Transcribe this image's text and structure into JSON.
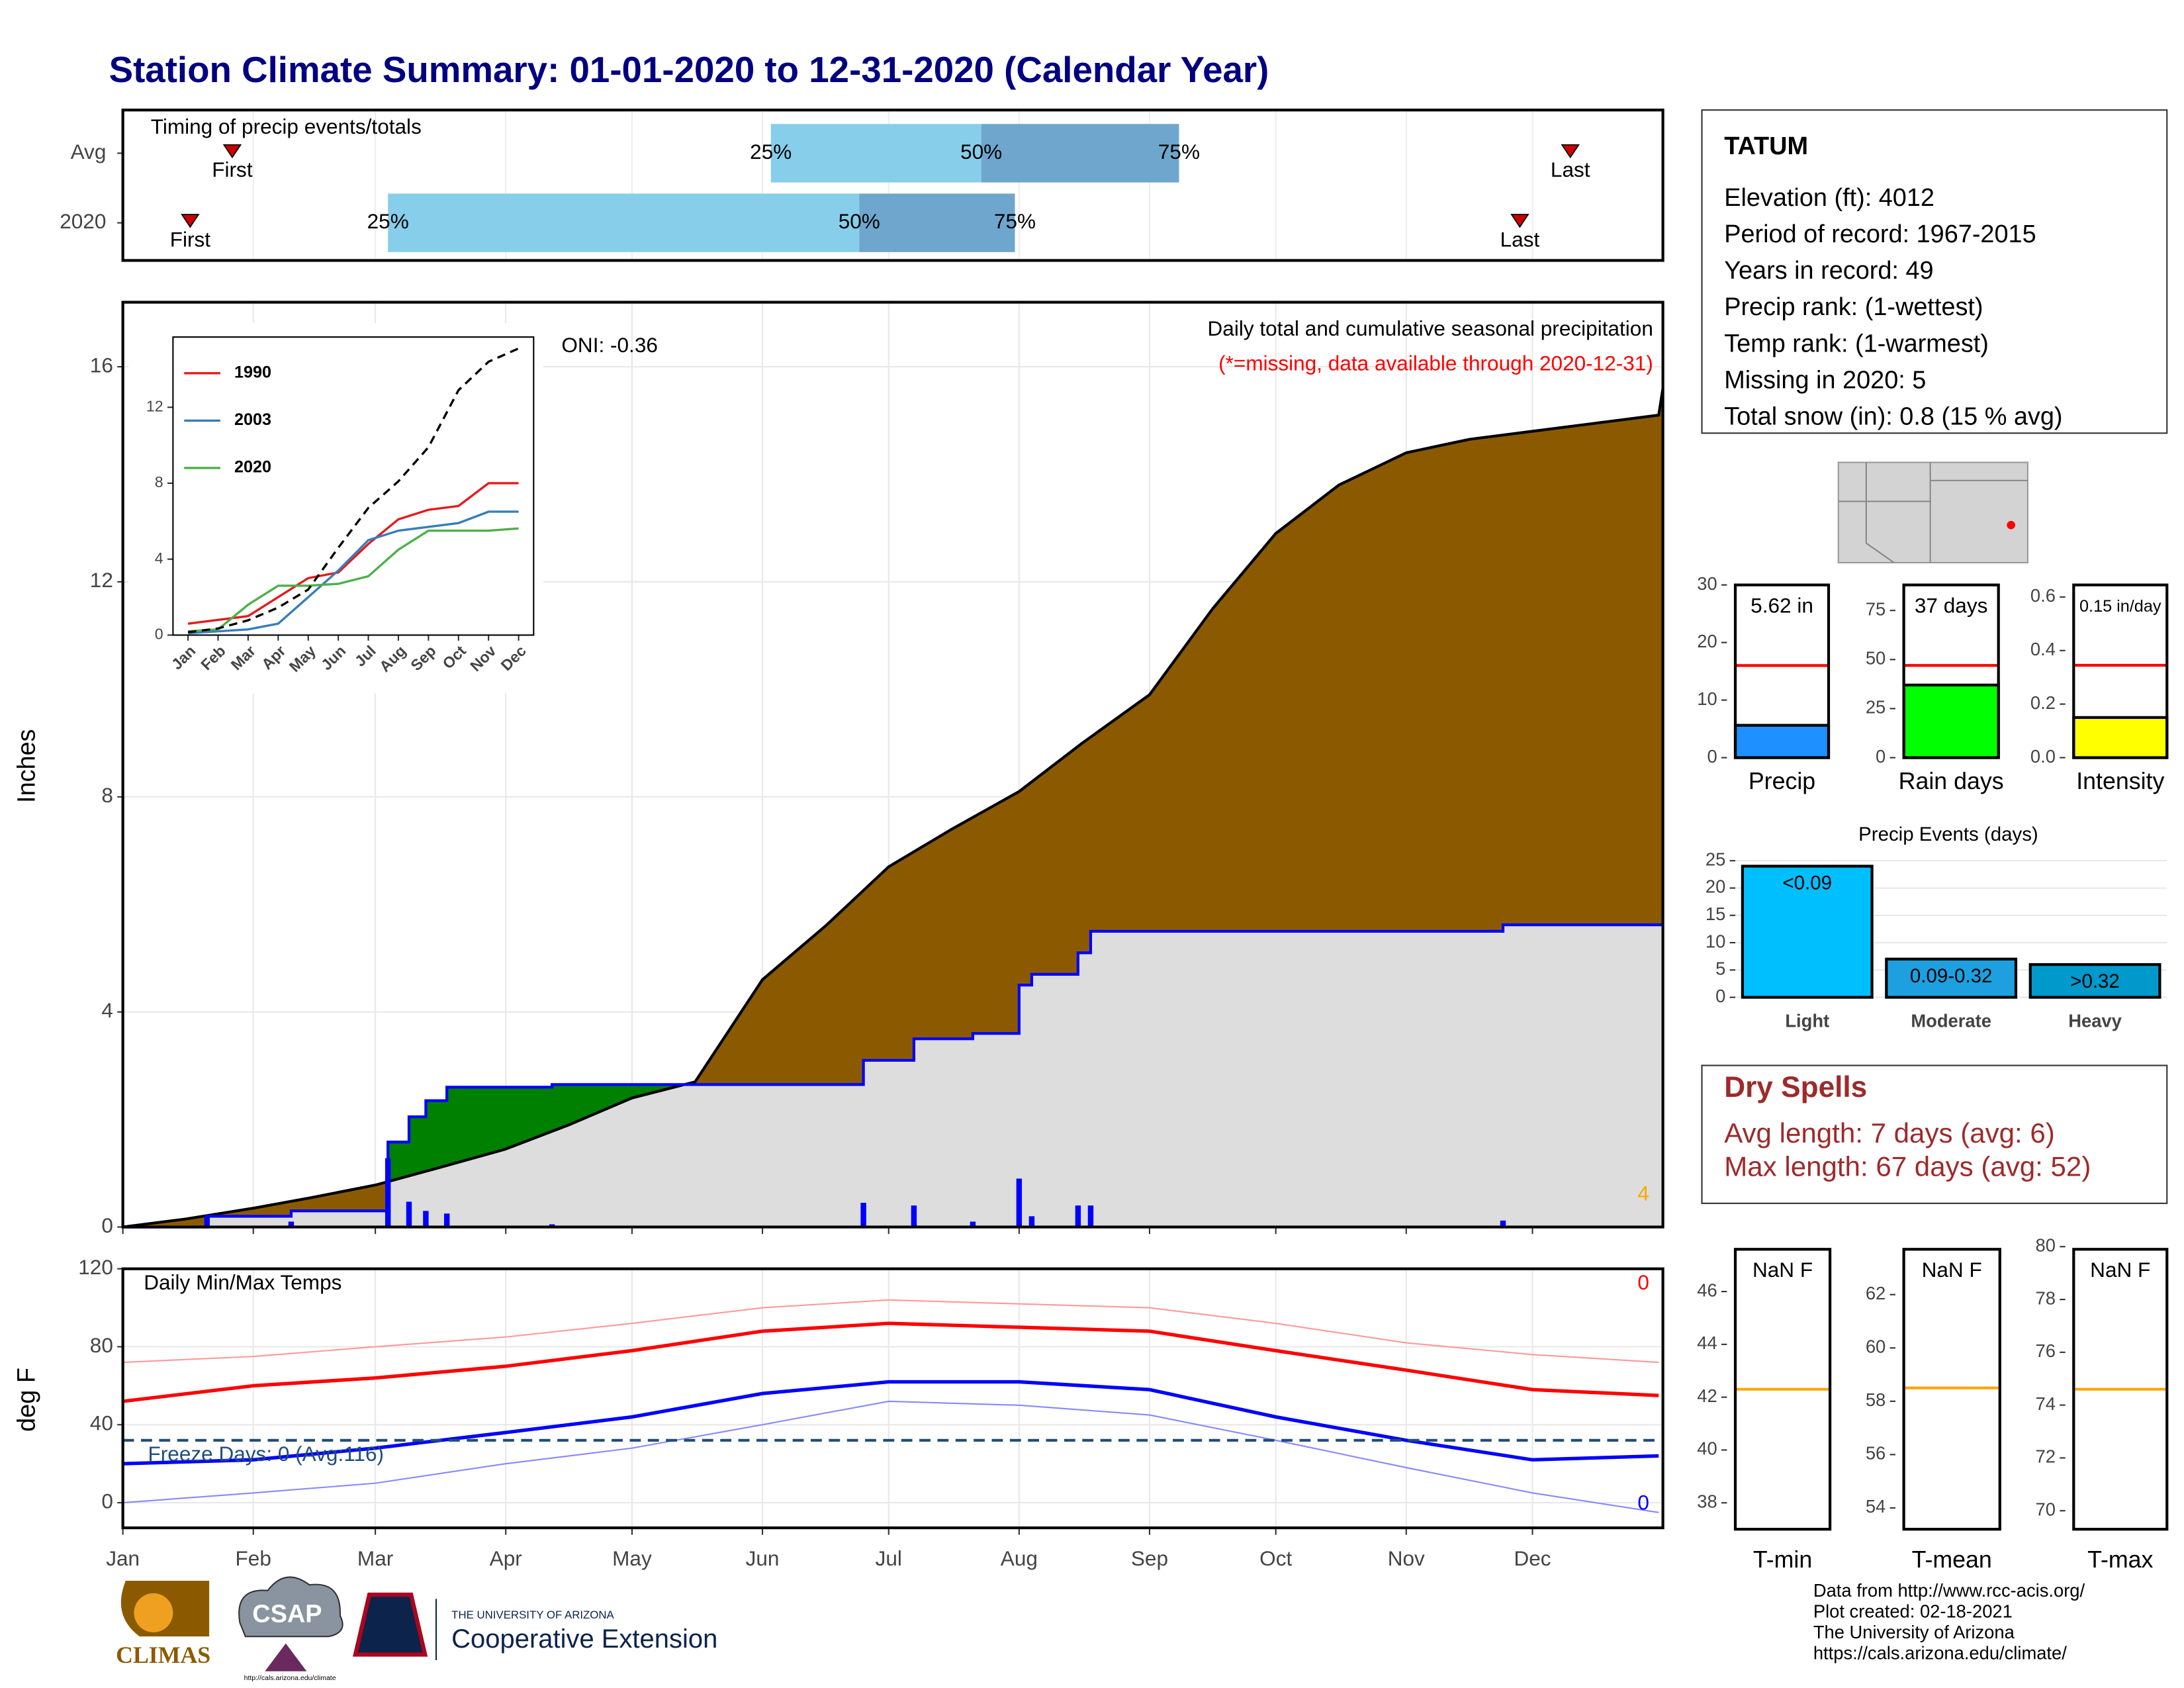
{
  "title": "Station Climate Summary: 01-01-2020 to 12-31-2020 (Calendar Year)",
  "station": {
    "name": "TATUM",
    "lines": [
      "Elevation (ft): 4012",
      "Period of record: 1967-2015",
      "Years in record: 49",
      "Precip rank:  (1-wettest)",
      "Temp rank:  (1-warmest)",
      "Missing in 2020: 5",
      "Total snow (in): 0.8 (15 % avg)"
    ]
  },
  "dry_spells": {
    "title": "Dry Spells",
    "lines": [
      "Avg length: 7 days (avg: 6)",
      "Max length: 67 days (avg: 52)"
    ]
  },
  "footer": [
    "Data from http://www.rcc-acis.org/",
    "Plot created: 02-18-2021",
    "The University of Arizona",
    "https://cals.arizona.edu/climate/"
  ],
  "logos": {
    "climas": "CLIMAS",
    "csap": "CSAP",
    "csap_url": "http://cals.arizona.edu/climate",
    "university": "THE UNIVERSITY OF ARIZONA",
    "extension": "Cooperative Extension"
  },
  "chart_data": [
    {
      "type": "timing",
      "title": "Timing of precip events/totals",
      "categories": [
        "Avg",
        "2020"
      ],
      "markers": [
        "First",
        "25%",
        "50%",
        "75%",
        "Last"
      ],
      "values": [
        [
          26,
          154,
          204,
          251,
          344
        ],
        [
          16,
          63,
          175,
          212,
          332
        ]
      ],
      "xlim": [
        0,
        366
      ],
      "colors": [
        "#87ceeb",
        "#6ea6cd"
      ],
      "marker_color": "#cc0000"
    },
    {
      "type": "area",
      "title": "Daily total and cumulative seasonal precipitation",
      "subtitle": "(*=missing, data available through 2020-12-31)",
      "annotation": "ONI: -0.36",
      "count_label": "4",
      "ylabel": "Inches",
      "xlim": [
        0,
        366
      ],
      "xticks": [
        0,
        31,
        60,
        91,
        121,
        152,
        182,
        213,
        244,
        274,
        305,
        335
      ],
      "ylim": [
        0,
        17.2
      ],
      "yticks": [
        0,
        4,
        8,
        12,
        16
      ],
      "grid": true,
      "series": [
        {
          "color": "#000000",
          "fill": "#8b5a00",
          "x": [
            0,
            15,
            31,
            45,
            60,
            75,
            91,
            106,
            121,
            136,
            152,
            167,
            182,
            197,
            213,
            228,
            244,
            259,
            274,
            289,
            305,
            320,
            335,
            350,
            365,
            366
          ],
          "values": [
            0,
            0.15,
            0.35,
            0.55,
            0.78,
            1.1,
            1.45,
            1.9,
            2.4,
            2.7,
            4.6,
            5.6,
            6.7,
            7.4,
            8.1,
            9.0,
            9.9,
            11.5,
            12.9,
            13.8,
            14.4,
            14.65,
            14.8,
            14.95,
            15.1,
            15.6
          ]
        },
        {
          "color": "#0000ff",
          "fill_above": "#008000",
          "fill_below": "#dddddd",
          "x": [
            0,
            20,
            20,
            40,
            40,
            63,
            63,
            68,
            68,
            72,
            72,
            77,
            77,
            102,
            102,
            176,
            176,
            188,
            188,
            202,
            202,
            213,
            213,
            216,
            216,
            227,
            227,
            230,
            230,
            328,
            328,
            366
          ],
          "values": [
            0,
            0,
            0.2,
            0.2,
            0.3,
            0.3,
            1.58,
            1.58,
            2.05,
            2.05,
            2.35,
            2.35,
            2.6,
            2.6,
            2.65,
            2.65,
            3.1,
            3.1,
            3.5,
            3.5,
            3.6,
            3.6,
            4.5,
            4.5,
            4.7,
            4.7,
            5.1,
            5.1,
            5.5,
            5.5,
            5.62,
            5.62
          ]
        }
      ],
      "daily": {
        "color": "#0000ff",
        "x": [
          20,
          40,
          63,
          68,
          72,
          77,
          102,
          176,
          188,
          202,
          213,
          216,
          227,
          230,
          328
        ],
        "values": [
          0.2,
          0.1,
          1.28,
          0.47,
          0.3,
          0.25,
          0.05,
          0.45,
          0.4,
          0.1,
          0.9,
          0.2,
          0.4,
          0.4,
          0.12
        ]
      }
    },
    {
      "type": "line",
      "categories": [
        "Jan",
        "Feb",
        "Mar",
        "Apr",
        "May",
        "Jun",
        "Jul",
        "Aug",
        "Sep",
        "Oct",
        "Nov",
        "Dec"
      ],
      "ylim": [
        0,
        15.7
      ],
      "yticks": [
        0,
        4,
        8,
        12
      ],
      "series": [
        {
          "name": "1990",
          "color": "#e41a1c",
          "values": [
            0.6,
            0.8,
            1.0,
            2.0,
            3.0,
            3.3,
            4.8,
            6.1,
            6.6,
            6.8,
            8.0,
            8.0
          ]
        },
        {
          "name": "2003",
          "color": "#377eb8",
          "values": [
            0.1,
            0.2,
            0.3,
            0.6,
            2.0,
            3.4,
            5.0,
            5.5,
            5.7,
            5.9,
            6.5,
            6.5
          ]
        },
        {
          "name": "2020",
          "color": "#4daf4a",
          "values": [
            0.2,
            0.3,
            1.6,
            2.6,
            2.6,
            2.7,
            3.1,
            4.5,
            5.5,
            5.5,
            5.5,
            5.62
          ]
        },
        {
          "color": "#000000",
          "dash": true,
          "values": [
            0.15,
            0.35,
            0.78,
            1.45,
            2.4,
            4.6,
            6.7,
            8.1,
            9.9,
            12.9,
            14.4,
            15.1
          ]
        }
      ]
    },
    {
      "type": "bar",
      "xlabel": "Precip",
      "values": [
        5.62
      ],
      "value_labels": [
        "5.62 in"
      ],
      "avg": 16,
      "avg_color": "#ff0000",
      "color": "#1e90ff",
      "ylim": [
        0,
        30
      ],
      "yticks": [
        0,
        10,
        20,
        30
      ]
    },
    {
      "type": "bar",
      "xlabel": "Rain days",
      "values": [
        37
      ],
      "value_labels": [
        "37 days"
      ],
      "avg": 47,
      "avg_color": "#ff0000",
      "color": "#00ff00",
      "ylim": [
        0,
        88
      ],
      "yticks": [
        0,
        25,
        50,
        75
      ]
    },
    {
      "type": "bar",
      "xlabel": "Intensity",
      "values": [
        0.15
      ],
      "value_labels": [
        "0.15 in/day"
      ],
      "avg": 0.345,
      "avg_color": "#ff0000",
      "color": "#ffff00",
      "ylim": [
        0,
        0.645
      ],
      "yticks": [
        {
          "value": 0,
          "label": "0.0"
        },
        0.2,
        0.4,
        0.6
      ]
    },
    {
      "type": "bar",
      "title": "Precip Events (days)",
      "categories": [
        "Light",
        "Moderate",
        "Heavy"
      ],
      "thresholds": [
        "<0.09",
        "0.09-0.32",
        ">0.32"
      ],
      "values": [
        24,
        7,
        6
      ],
      "colors": [
        "#00bfff",
        "#1ea0e0",
        "#0099cc"
      ],
      "ylim": [
        -1,
        25
      ],
      "yticks": [
        0,
        5,
        10,
        15,
        20,
        25
      ],
      "grid": true
    },
    {
      "type": "line",
      "title": "Daily Min/Max Temps",
      "ylabel": "deg F",
      "annotation": "Freeze Days: 0 (Avg:116)",
      "freeze_line": 32,
      "record_high_count": 0,
      "record_low_count": 0,
      "x": [
        0,
        31,
        60,
        91,
        121,
        152,
        182,
        213,
        244,
        274,
        305,
        335,
        365
      ],
      "xlim": [
        0,
        366
      ],
      "xticks": [
        {
          "value": 0,
          "label": "Jan"
        },
        {
          "value": 31,
          "label": "Feb"
        },
        {
          "value": 60,
          "label": "Mar"
        },
        {
          "value": 91,
          "label": "Apr"
        },
        {
          "value": 121,
          "label": "May"
        },
        {
          "value": 152,
          "label": "Jun"
        },
        {
          "value": 182,
          "label": "Jul"
        },
        {
          "value": 213,
          "label": "Aug"
        },
        {
          "value": 244,
          "label": "Sep"
        },
        {
          "value": 274,
          "label": "Oct"
        },
        {
          "value": 305,
          "label": "Nov"
        },
        {
          "value": 335,
          "label": "Dec"
        }
      ],
      "ylim": [
        -12.9,
        120
      ],
      "yticks": [
        0,
        40,
        80,
        120
      ],
      "grid": true,
      "series": [
        {
          "color": "#ff9999",
          "width": 1,
          "values": [
            72,
            75,
            80,
            85,
            92,
            100,
            104,
            102,
            100,
            92,
            82,
            76,
            72
          ]
        },
        {
          "color": "#ff0000",
          "width": 2.5,
          "values": [
            52,
            60,
            64,
            70,
            78,
            88,
            92,
            90,
            88,
            78,
            68,
            58,
            55
          ]
        },
        {
          "color": "#0000ff",
          "width": 2.5,
          "values": [
            20,
            22,
            28,
            36,
            44,
            56,
            62,
            62,
            58,
            44,
            32,
            22,
            24
          ]
        },
        {
          "color": "#8888ff",
          "width": 1,
          "values": [
            0,
            5,
            10,
            20,
            28,
            40,
            52,
            50,
            45,
            32,
            18,
            5,
            -5
          ]
        }
      ]
    },
    {
      "type": "bar",
      "xlabel": "T-min",
      "values": [
        null
      ],
      "value_labels": [
        "NaN F"
      ],
      "avg": 42.3,
      "avg_color": "#ffa500",
      "ylim": [
        37,
        47.6
      ],
      "yticks": [
        38,
        40,
        42,
        44,
        46
      ]
    },
    {
      "type": "bar",
      "xlabel": "T-mean",
      "values": [
        null
      ],
      "value_labels": [
        "NaN F"
      ],
      "avg": 58.5,
      "avg_color": "#ffa500",
      "ylim": [
        53.2,
        63.7
      ],
      "yticks": [
        54,
        56,
        58,
        60,
        62
      ]
    },
    {
      "type": "bar",
      "xlabel": "T-max",
      "values": [
        null
      ],
      "value_labels": [
        "NaN F"
      ],
      "avg": 74.6,
      "avg_color": "#ffa500",
      "ylim": [
        69.3,
        79.9
      ],
      "yticks": [
        70,
        72,
        74,
        76,
        78,
        80
      ]
    }
  ]
}
